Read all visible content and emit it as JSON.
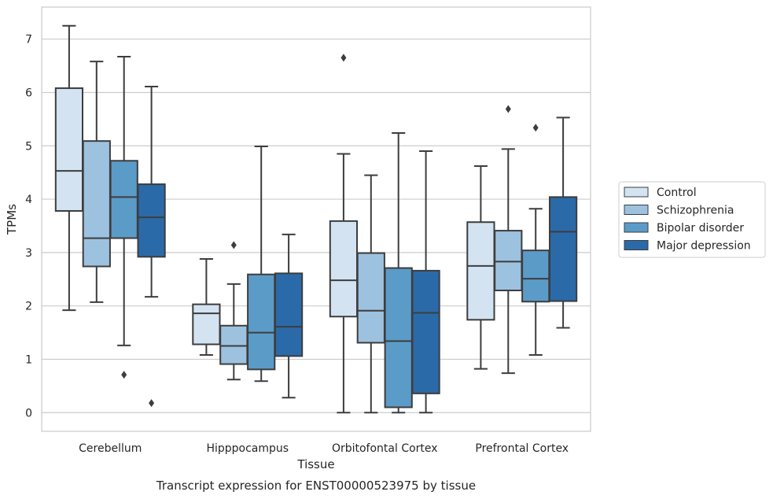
{
  "chart_data": {
    "type": "box",
    "caption": "Transcript expression for ENST00000523975 by tissue",
    "xlabel": "Tissue",
    "ylabel": "TPMs",
    "ylim": [
      -0.35,
      7.6
    ],
    "yticks": [
      0,
      1,
      2,
      3,
      4,
      5,
      6,
      7
    ],
    "grid": "horizontal",
    "legend_position": "right",
    "categories": [
      "Cerebellum",
      "Hipppocampus",
      "Orbitofontal Cortex",
      "Prefrontal Cortex"
    ],
    "series": [
      {
        "name": "Control",
        "color": "#d3e3f1",
        "boxes": [
          {
            "whislo": 1.92,
            "q1": 3.78,
            "med": 4.53,
            "q3": 6.08,
            "whishi": 7.25,
            "fliers": []
          },
          {
            "whislo": 1.08,
            "q1": 1.28,
            "med": 1.86,
            "q3": 2.03,
            "whishi": 2.88,
            "fliers": []
          },
          {
            "whislo": 0.0,
            "q1": 1.8,
            "med": 2.48,
            "q3": 3.59,
            "whishi": 4.85,
            "fliers": [
              6.65
            ]
          },
          {
            "whislo": 0.82,
            "q1": 1.74,
            "med": 2.75,
            "q3": 3.57,
            "whishi": 4.62,
            "fliers": []
          }
        ]
      },
      {
        "name": "Schizophrenia",
        "color": "#9dc2df",
        "boxes": [
          {
            "whislo": 2.07,
            "q1": 2.74,
            "med": 3.27,
            "q3": 5.09,
            "whishi": 6.58,
            "fliers": []
          },
          {
            "whislo": 0.62,
            "q1": 0.91,
            "med": 1.25,
            "q3": 1.63,
            "whishi": 2.41,
            "fliers": [
              3.14
            ]
          },
          {
            "whislo": 0.0,
            "q1": 1.31,
            "med": 1.91,
            "q3": 2.99,
            "whishi": 4.45,
            "fliers": []
          },
          {
            "whislo": 0.74,
            "q1": 2.29,
            "med": 2.83,
            "q3": 3.41,
            "whishi": 4.94,
            "fliers": [
              5.69
            ]
          }
        ]
      },
      {
        "name": "Bipolar disorder",
        "color": "#5b9bc8",
        "boxes": [
          {
            "whislo": 1.26,
            "q1": 3.27,
            "med": 4.04,
            "q3": 4.72,
            "whishi": 6.67,
            "fliers": [
              0.71
            ]
          },
          {
            "whislo": 0.59,
            "q1": 0.81,
            "med": 1.5,
            "q3": 2.59,
            "whishi": 4.99,
            "fliers": []
          },
          {
            "whislo": 0.0,
            "q1": 0.1,
            "med": 1.34,
            "q3": 2.71,
            "whishi": 5.24,
            "fliers": []
          },
          {
            "whislo": 1.08,
            "q1": 2.08,
            "med": 2.51,
            "q3": 3.04,
            "whishi": 3.82,
            "fliers": [
              5.34
            ]
          }
        ]
      },
      {
        "name": "Major depression",
        "color": "#2b6aa8",
        "boxes": [
          {
            "whislo": 2.17,
            "q1": 2.92,
            "med": 3.66,
            "q3": 4.28,
            "whishi": 6.11,
            "fliers": [
              0.18
            ]
          },
          {
            "whislo": 0.28,
            "q1": 1.06,
            "med": 1.61,
            "q3": 2.61,
            "whishi": 3.34,
            "fliers": []
          },
          {
            "whislo": 0.0,
            "q1": 0.36,
            "med": 1.87,
            "q3": 2.66,
            "whishi": 4.9,
            "fliers": []
          },
          {
            "whislo": 1.59,
            "q1": 2.09,
            "med": 3.39,
            "q3": 4.04,
            "whishi": 5.53,
            "fliers": []
          }
        ]
      }
    ]
  }
}
